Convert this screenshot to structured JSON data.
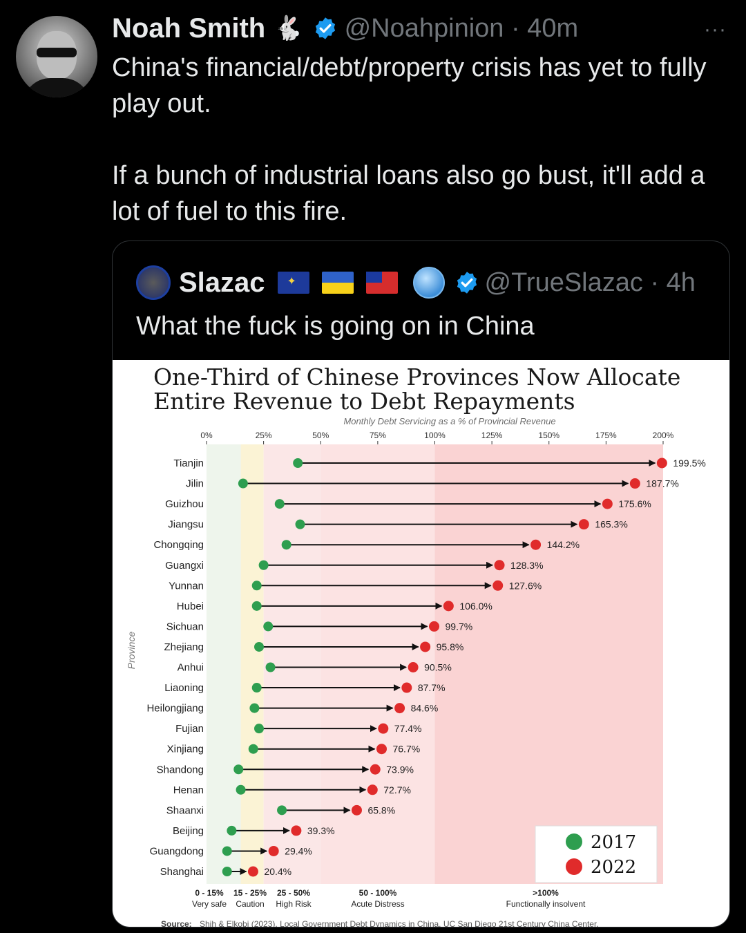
{
  "tweet": {
    "author_name": "Noah Smith",
    "author_emoji": "🐇",
    "handle_time": "@Noahpinion · 40m",
    "more_label": "···",
    "text": "China's financial/debt/property crisis has yet to fully play out.\n\nIf a bunch of industrial loans also go bust, it'll add a lot of fuel to this fire."
  },
  "quote": {
    "author_name": "Slazac",
    "handle_time": "@TrueSlazac · 4h",
    "text": "What the fuck is going on in China"
  },
  "colors": {
    "verified": "#1d9bf0",
    "dot_2017": "#2e9e4f",
    "dot_2022": "#e02b2b",
    "band_very_safe": "#eef5ec",
    "band_caution": "#fbf3d5",
    "band_high_risk": "#fbe7e7",
    "band_acute": "#fce3e3",
    "band_insolvent": "#fad3d3"
  },
  "chart_data": {
    "type": "dumbbell",
    "title_line1": "One-Third of Chinese Provinces Now Allocate",
    "title_line2": "Entire Revenue to Debt Repayments",
    "subtitle": "Monthly Debt Servicing as a % of Provincial Revenue",
    "ylabel": "Province",
    "xlim": [
      0,
      200
    ],
    "x_ticks": [
      "0%",
      "25%",
      "50%",
      "75%",
      "100%",
      "125%",
      "150%",
      "175%",
      "200%"
    ],
    "provinces": [
      {
        "name": "Tianjin",
        "v2017": 40,
        "v2022": 199.5,
        "label": "199.5%"
      },
      {
        "name": "Jilin",
        "v2017": 16,
        "v2022": 187.7,
        "label": "187.7%"
      },
      {
        "name": "Guizhou",
        "v2017": 32,
        "v2022": 175.6,
        "label": "175.6%"
      },
      {
        "name": "Jiangsu",
        "v2017": 41,
        "v2022": 165.3,
        "label": "165.3%"
      },
      {
        "name": "Chongqing",
        "v2017": 35,
        "v2022": 144.2,
        "label": "144.2%"
      },
      {
        "name": "Guangxi",
        "v2017": 25,
        "v2022": 128.3,
        "label": "128.3%"
      },
      {
        "name": "Yunnan",
        "v2017": 22,
        "v2022": 127.6,
        "label": "127.6%"
      },
      {
        "name": "Hubei",
        "v2017": 22,
        "v2022": 106.0,
        "label": "106.0%"
      },
      {
        "name": "Sichuan",
        "v2017": 27,
        "v2022": 99.7,
        "label": "99.7%"
      },
      {
        "name": "Zhejiang",
        "v2017": 23,
        "v2022": 95.8,
        "label": "95.8%"
      },
      {
        "name": "Anhui",
        "v2017": 28,
        "v2022": 90.5,
        "label": "90.5%"
      },
      {
        "name": "Liaoning",
        "v2017": 22,
        "v2022": 87.7,
        "label": "87.7%"
      },
      {
        "name": "Heilongjiang",
        "v2017": 21,
        "v2022": 84.6,
        "label": "84.6%"
      },
      {
        "name": "Fujian",
        "v2017": 23,
        "v2022": 77.4,
        "label": "77.4%"
      },
      {
        "name": "Xinjiang",
        "v2017": 20.5,
        "v2022": 76.7,
        "label": "76.7%"
      },
      {
        "name": "Shandong",
        "v2017": 14,
        "v2022": 73.9,
        "label": "73.9%"
      },
      {
        "name": "Henan",
        "v2017": 15,
        "v2022": 72.7,
        "label": "72.7%"
      },
      {
        "name": "Shaanxi",
        "v2017": 33,
        "v2022": 65.8,
        "label": "65.8%"
      },
      {
        "name": "Beijing",
        "v2017": 11,
        "v2022": 39.3,
        "label": "39.3%"
      },
      {
        "name": "Guangdong",
        "v2017": 9,
        "v2022": 29.4,
        "label": "29.4%"
      },
      {
        "name": "Shanghai",
        "v2017": 9,
        "v2022": 20.4,
        "label": "20.4%"
      }
    ],
    "bands": [
      {
        "from": 0,
        "to": 15,
        "range": "0 - 15%",
        "label": "Very safe",
        "color_key": "band_very_safe"
      },
      {
        "from": 15,
        "to": 25,
        "range": "15 - 25%",
        "label": "Caution",
        "color_key": "band_caution"
      },
      {
        "from": 25,
        "to": 50,
        "range": "25 - 50%",
        "label": "High Risk",
        "color_key": "band_high_risk"
      },
      {
        "from": 50,
        "to": 100,
        "range": "50 - 100%",
        "label": "Acute Distress",
        "color_key": "band_acute"
      },
      {
        "from": 100,
        "to": 200,
        "range": ">100%",
        "label": "Functionally insolvent",
        "color_key": "band_insolvent"
      }
    ],
    "legend": [
      {
        "label": "2017",
        "color_key": "dot_2017"
      },
      {
        "label": "2022",
        "color_key": "dot_2022"
      }
    ],
    "legend_position": "bottom-right",
    "source_prefix": "Source:",
    "source_text": "Shih & Elkobi (2023). Local Government Debt Dynamics in China, UC San Diego 21st Century China Center."
  }
}
